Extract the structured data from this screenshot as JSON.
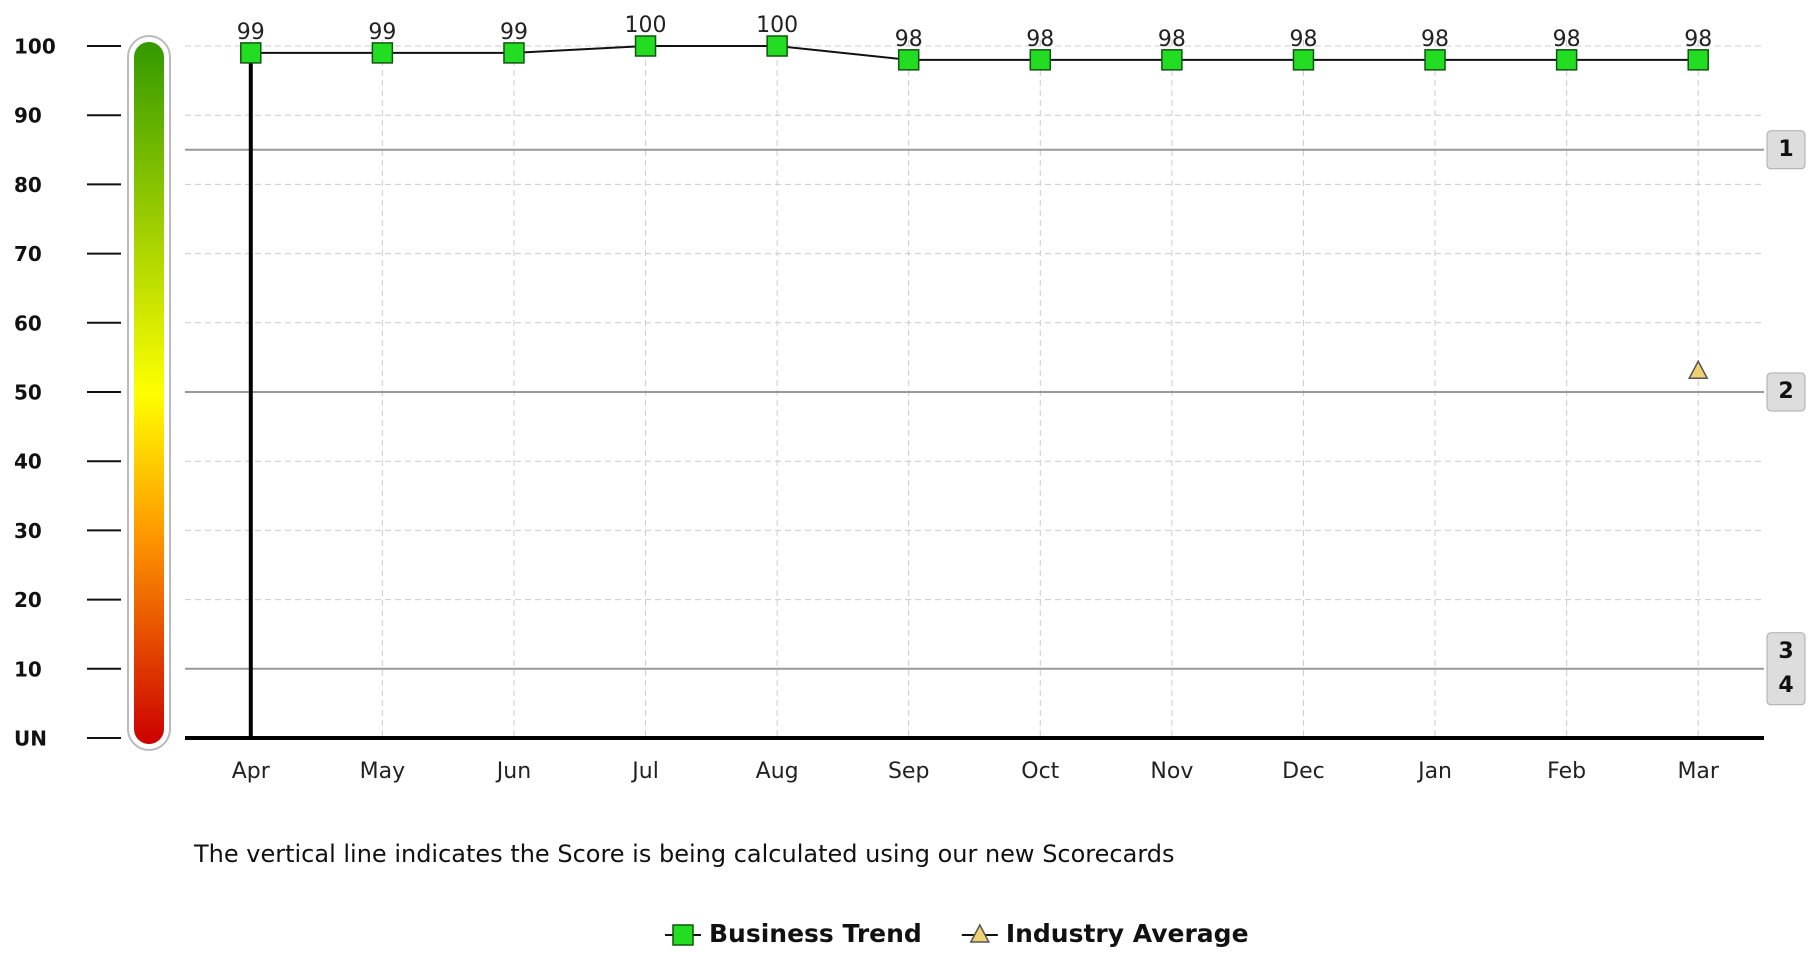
{
  "chart_data": {
    "type": "line",
    "categories": [
      "Apr",
      "May",
      "Jun",
      "Jul",
      "Aug",
      "Sep",
      "Oct",
      "Nov",
      "Dec",
      "Jan",
      "Feb",
      "Mar"
    ],
    "series": [
      {
        "name": "Business Trend",
        "color": "#22dd22",
        "marker": "square",
        "show_labels": true,
        "values": [
          99,
          99,
          99,
          100,
          100,
          98,
          98,
          98,
          98,
          98,
          98,
          98
        ]
      },
      {
        "name": "Industry Average",
        "color": "#f0d070",
        "marker": "triangle",
        "show_labels": false,
        "values": [
          null,
          null,
          null,
          null,
          null,
          null,
          null,
          null,
          null,
          null,
          null,
          53
        ]
      }
    ],
    "ylim": [
      0,
      100
    ],
    "yticks": [
      {
        "value": 0,
        "label": "UN"
      },
      10,
      20,
      30,
      40,
      50,
      60,
      70,
      80,
      90,
      100
    ],
    "grid": true,
    "reference_lines": [
      {
        "value": 85,
        "labels": [
          "1"
        ]
      },
      {
        "value": 50,
        "labels": [
          "2"
        ]
      },
      {
        "value": 10,
        "labels": [
          "3",
          "4"
        ]
      }
    ],
    "vertical_line_index": 0,
    "annotation": "The vertical line indicates the Score is being calculated using our new Scorecards",
    "legend": "bottom"
  }
}
